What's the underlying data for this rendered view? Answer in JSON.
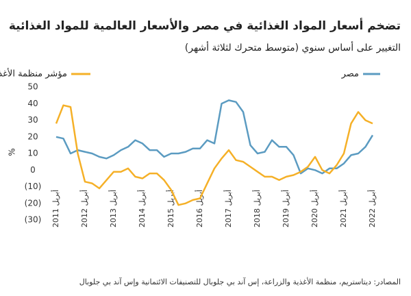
{
  "chart_data": {
    "type": "line",
    "title": "تضخم أسعار المواد الغذائية في مصر والأسعار العالمية للمواد الغذائية",
    "subtitle": "التغيير على أساس سنوي (متوسط متحرك لثلاثة أشهر)",
    "y_label": "%",
    "source": "المصادر: ديتاستريم، منظمة الأغذية والزراعة، إس آند بي جلوبال للتصنيفات الائتمانية وإس آند بي جلوبال",
    "categories": [
      "أبريل 2011",
      null,
      null,
      null,
      "أبريل 2012",
      null,
      null,
      null,
      "أبريل 2013",
      null,
      null,
      null,
      "أبريل 2014",
      null,
      null,
      null,
      "أبريل 2015",
      null,
      null,
      null,
      "أبريل 2016",
      null,
      null,
      null,
      "أبريل 2017",
      null,
      null,
      null,
      "أبريل 2018",
      null,
      null,
      null,
      "أبريل 2019",
      null,
      null,
      null,
      "أبريل 2020",
      null,
      null,
      null,
      "أبريل 2021",
      null,
      null,
      null,
      "أبريل 2022"
    ],
    "series": [
      {
        "name": "مصر",
        "color": "#5b9bc1",
        "values": [
          20,
          19,
          10,
          12,
          11,
          10,
          8,
          7,
          9,
          12,
          14,
          18,
          16,
          12,
          12,
          8,
          10,
          10,
          11,
          13,
          13,
          18,
          16,
          40,
          42,
          41,
          35,
          15,
          10,
          11,
          18,
          14,
          14,
          9,
          -2,
          1,
          0,
          -2,
          1,
          1,
          4,
          9,
          10,
          14,
          21
        ]
      },
      {
        "name": "مؤشر منظمة الأغذية والزراعة لأسعار الغذاء",
        "color": "#f5b027",
        "values": [
          28,
          39,
          38,
          10,
          -7,
          -8,
          -11,
          -6,
          -1,
          -1,
          1,
          -4,
          -5,
          -2,
          -2,
          -6,
          -12,
          -21,
          -20,
          -18,
          -17,
          -8,
          1,
          7,
          12,
          6,
          5,
          2,
          -1,
          -4,
          -4,
          -6,
          -4,
          -3,
          -1,
          2,
          8,
          0,
          -2,
          3,
          10,
          28,
          35,
          30,
          28
        ]
      }
    ],
    "ylim": [
      -30,
      50
    ],
    "yticks": [
      50,
      40,
      30,
      20,
      10,
      0,
      {
        "value": -10,
        "label": "(10)"
      },
      {
        "value": -20,
        "label": "(20)"
      },
      {
        "value": -30,
        "label": "(30)"
      }
    ],
    "grid": false
  }
}
